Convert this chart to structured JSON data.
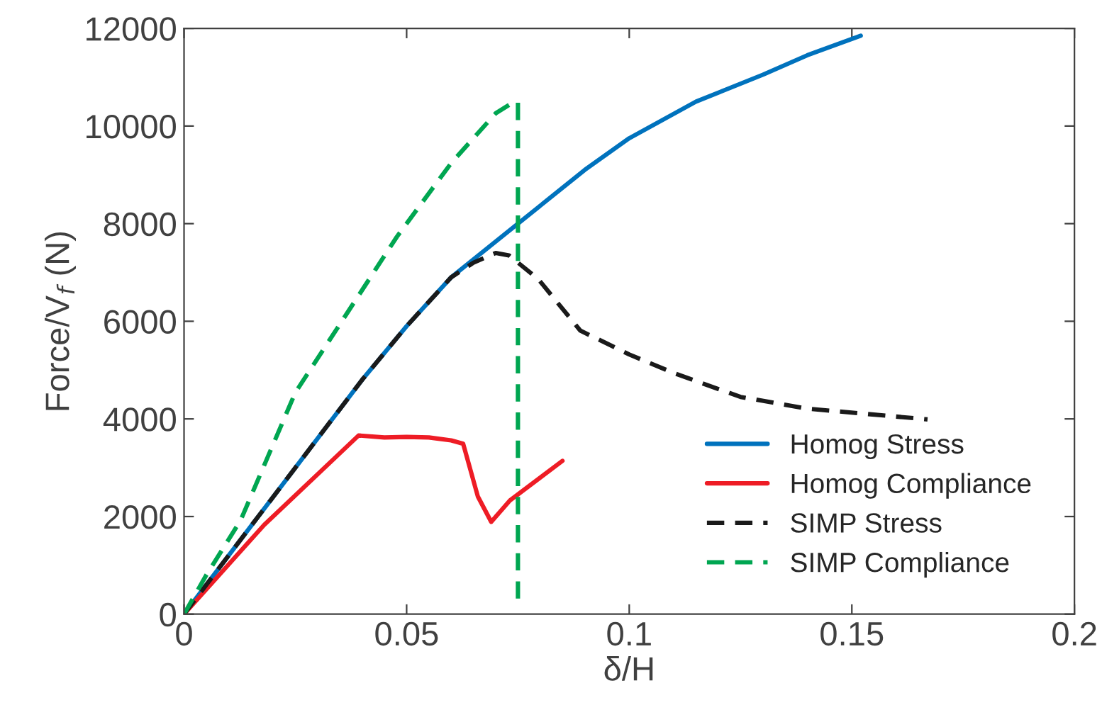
{
  "chart_data": {
    "type": "line",
    "xlabel": "δ/H",
    "ylabel": "Force/V$_{f}$ (N)",
    "xlim": [
      0,
      0.2
    ],
    "xticks": [
      0,
      0.05,
      0.1,
      0.15,
      0.2
    ],
    "ylim": [
      0,
      12000
    ],
    "yticks": [
      0,
      2000,
      4000,
      6000,
      8000,
      10000,
      12000
    ],
    "grid": false,
    "legend": "bottom right",
    "marker": "none",
    "series": [
      {
        "name": "Homog Stress",
        "color": "#0072bd",
        "line_style": "solid",
        "x": [
          0,
          0.01,
          0.025,
          0.04,
          0.05,
          0.06,
          0.075,
          0.09,
          0.1,
          0.115,
          0.13,
          0.14,
          0.152
        ],
        "values": [
          0,
          1200,
          3000,
          4800,
          5900,
          6900,
          8000,
          9100,
          9750,
          10500,
          11050,
          11450,
          11850
        ]
      },
      {
        "name": "Homog Compliance",
        "color": "#ee1c25",
        "line_style": "solid",
        "x": [
          0,
          0.018,
          0.0392,
          0.045,
          0.05,
          0.055,
          0.06,
          0.0627,
          0.066,
          0.069,
          0.0732,
          0.085
        ],
        "values": [
          0,
          1830,
          3660,
          3620,
          3630,
          3620,
          3560,
          3490,
          2410,
          1890,
          2330,
          3140
        ]
      },
      {
        "name": "SIMP Stress",
        "color": "#1a1a1a",
        "line_style": "dashed",
        "x": [
          0,
          0.01,
          0.025,
          0.04,
          0.05,
          0.06,
          0.065,
          0.07,
          0.073,
          0.0796,
          0.089,
          0.1,
          0.11,
          0.125,
          0.14,
          0.167
        ],
        "values": [
          0,
          1200,
          3000,
          4800,
          5900,
          6900,
          7200,
          7400,
          7350,
          6860,
          5810,
          5320,
          4940,
          4450,
          4210,
          3990
        ]
      },
      {
        "name": "SIMP Compliance",
        "color": "#00a651",
        "line_style": "dashed",
        "x": [
          0,
          0.005,
          0.0127,
          0.025,
          0.0478,
          0.06,
          0.07,
          0.0735,
          0.075,
          0.075
        ],
        "values": [
          0,
          800,
          1920,
          4540,
          7730,
          9240,
          10260,
          10460,
          10500,
          300
        ]
      }
    ]
  }
}
